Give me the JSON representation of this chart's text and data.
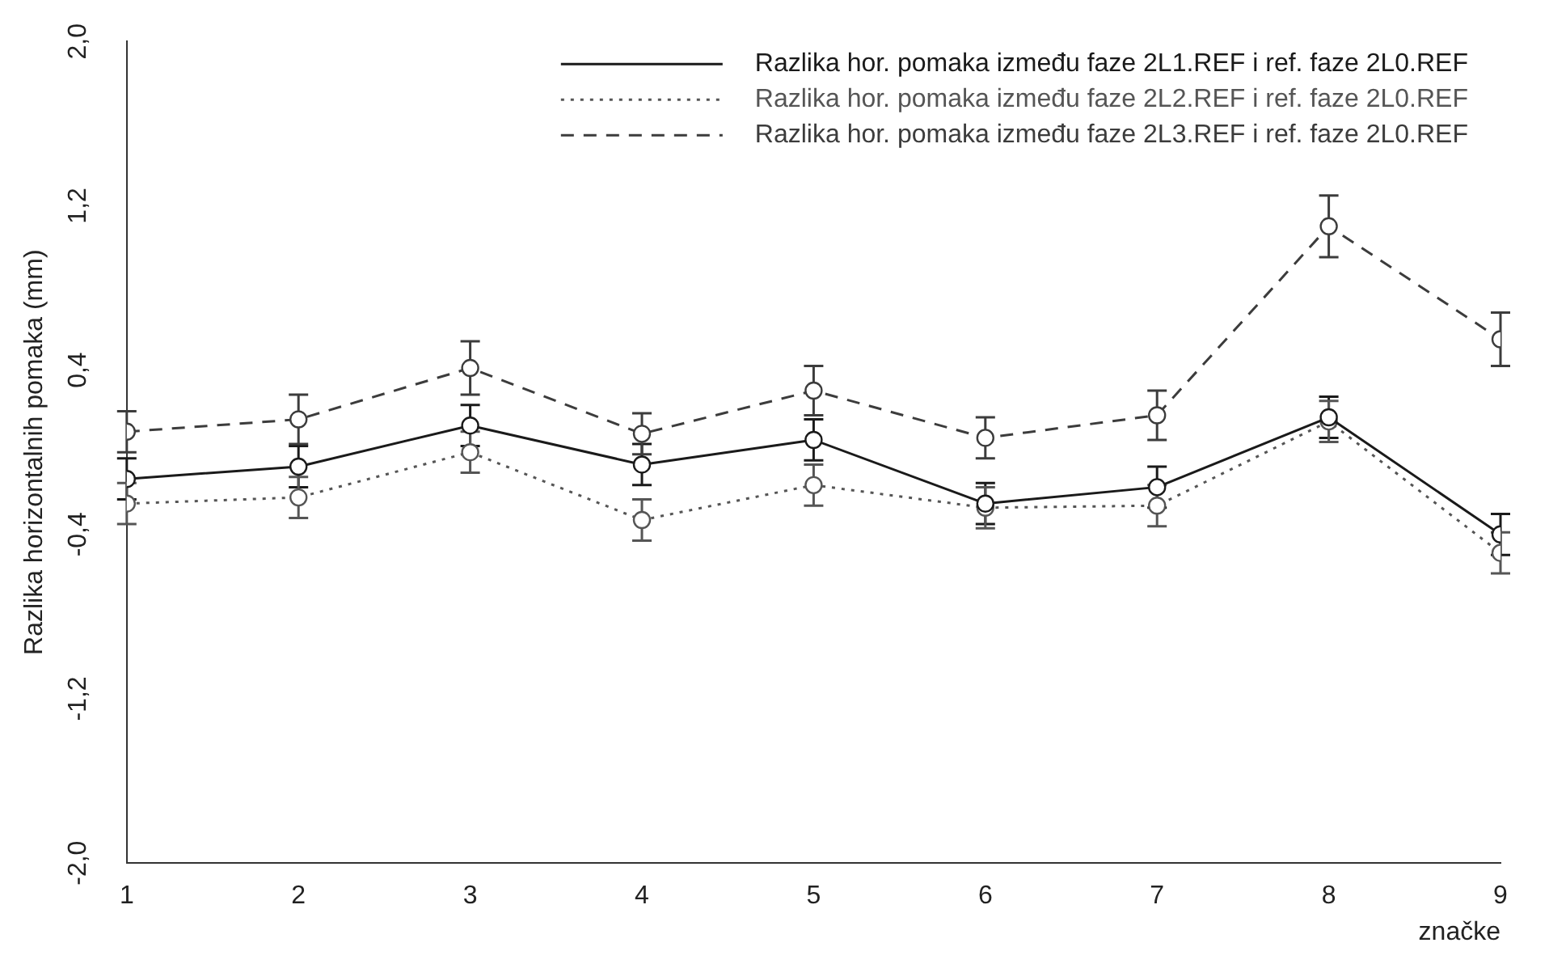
{
  "chart_data": {
    "type": "line",
    "ylabel": "Razlika horizontalnih pomaka (mm)",
    "xlabel": "značke",
    "x": [
      1,
      2,
      3,
      4,
      5,
      6,
      7,
      8,
      9
    ],
    "xlim": [
      1,
      9
    ],
    "xticks": [
      1,
      2,
      3,
      4,
      5,
      6,
      7,
      8,
      9
    ],
    "ylim": [
      -2,
      2
    ],
    "yticks": [
      {
        "value": -2,
        "label": "-2,0"
      },
      {
        "value": -1.2,
        "label": "-1,2"
      },
      {
        "value": -0.4,
        "label": "-0,4"
      },
      {
        "value": 0.4,
        "label": "0,4"
      },
      {
        "value": 1.2,
        "label": "1,2"
      },
      {
        "value": 2,
        "label": "2,0"
      }
    ],
    "grid": false,
    "legend": "top right",
    "marker": "circle",
    "series": [
      {
        "name": "Razlika hor. pomaka između faze 2L1.REF i ref. faze 2L0.REF",
        "color": "#1a1a1a",
        "line_style": "solid",
        "values": [
          -0.13,
          -0.07,
          0.13,
          -0.06,
          0.06,
          -0.25,
          -0.17,
          0.17,
          -0.4
        ],
        "errors": [
          0.1,
          0.1,
          0.1,
          0.1,
          0.1,
          0.1,
          0.1,
          0.1,
          0.1
        ]
      },
      {
        "name": "Razlika hor. pomaka između faze 2L2.REF i ref. faze 2L0.REF",
        "color": "#555555",
        "line_style": "dotted",
        "values": [
          -0.25,
          -0.22,
          0,
          -0.33,
          -0.16,
          -0.27,
          -0.26,
          0.15,
          -0.49
        ],
        "errors": [
          0.1,
          0.1,
          0.1,
          0.1,
          0.1,
          0.1,
          0.1,
          0.1,
          0.1
        ]
      },
      {
        "name": "Razlika hor. pomaka između faze 2L3.REF i ref. faze 2L0.REF",
        "color": "#3c3c3c",
        "line_style": "dashed",
        "values": [
          0.1,
          0.16,
          0.41,
          0.09,
          0.3,
          0.07,
          0.18,
          1.1,
          0.55
        ],
        "errors": [
          0.1,
          0.12,
          0.13,
          0.1,
          0.12,
          0.1,
          0.12,
          0.15,
          0.13
        ]
      }
    ]
  }
}
